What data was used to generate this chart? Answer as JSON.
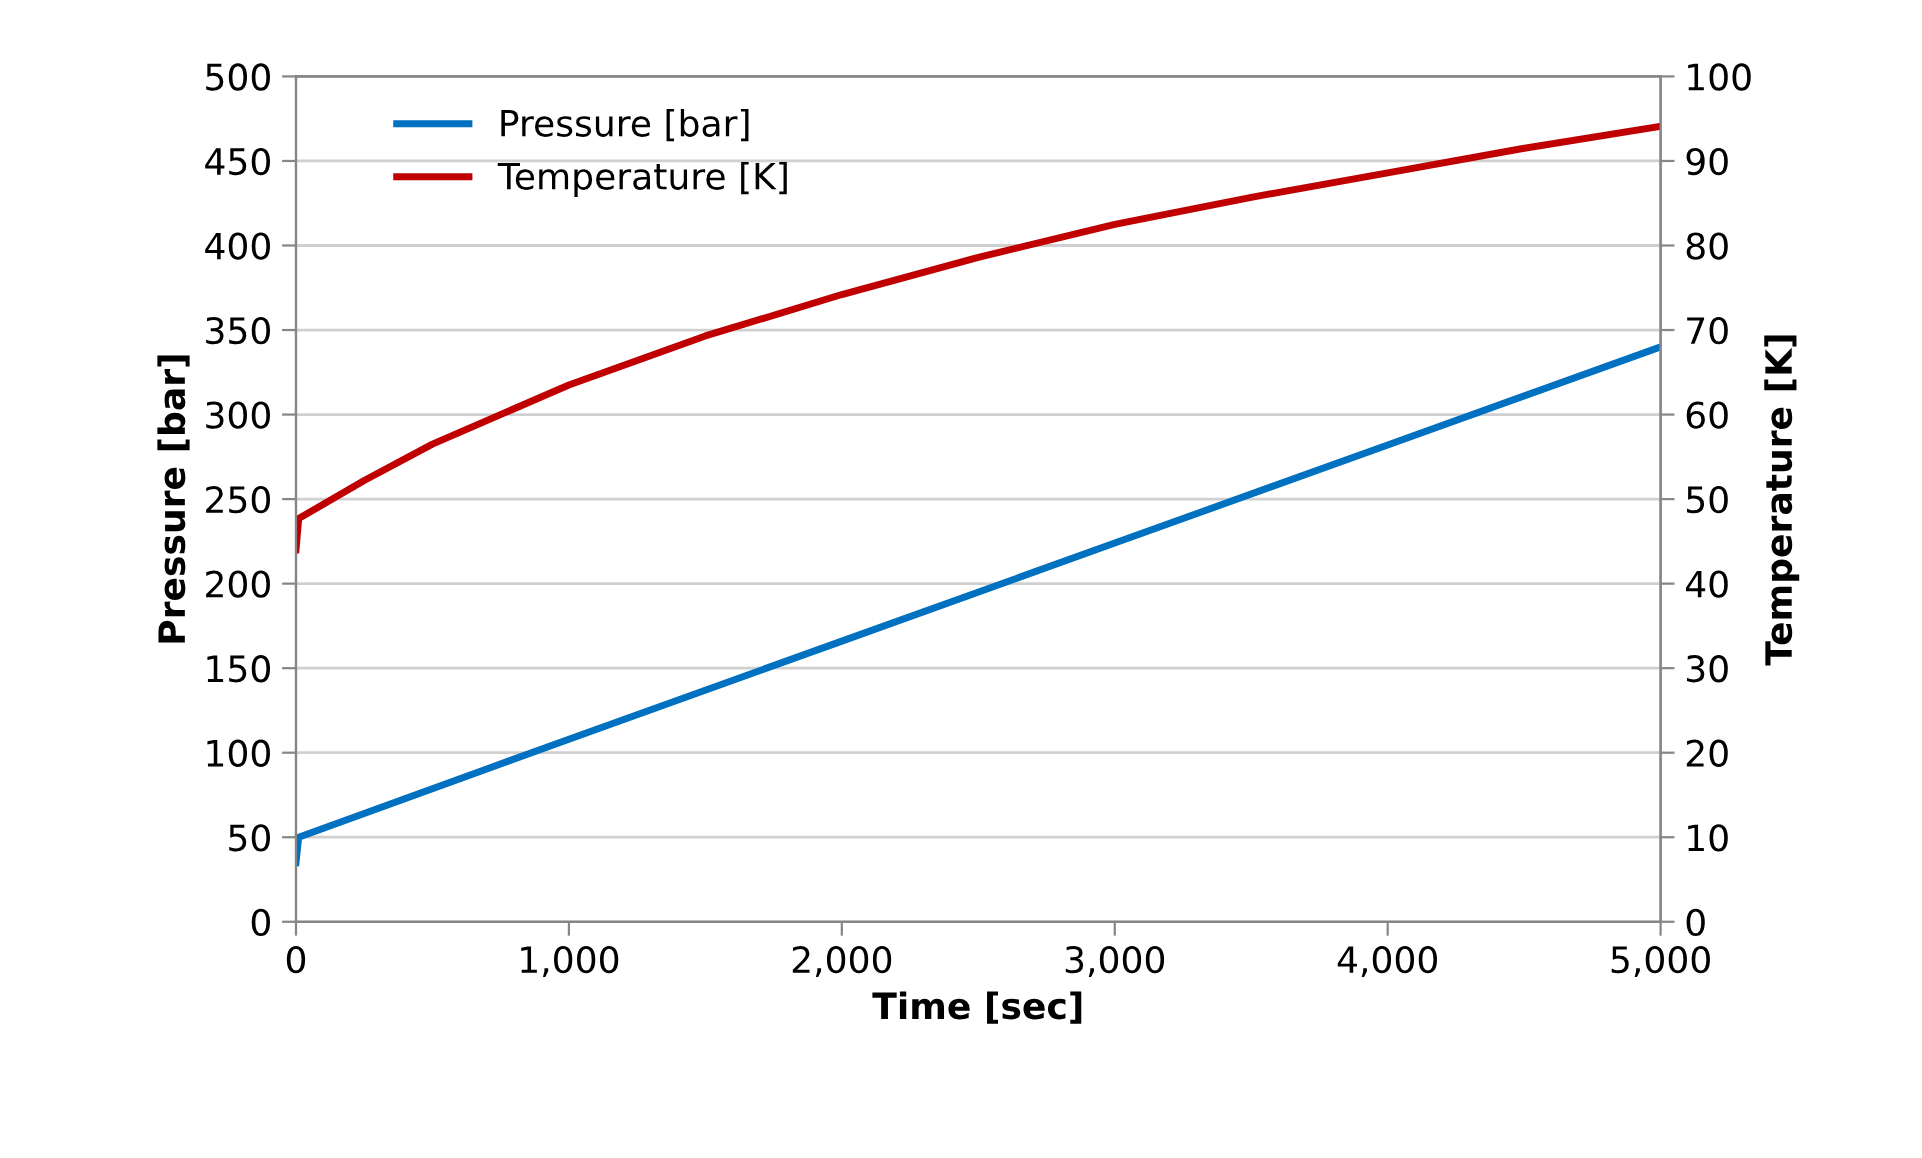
{
  "chart_data": {
    "type": "line",
    "xlabel": "Time [sec]",
    "ylabel": "Pressure [bar]",
    "y2label": "Temperature [K]",
    "xlim": [
      0,
      5000
    ],
    "xticks": [
      {
        "value": 0,
        "label": "0"
      },
      {
        "value": 1000,
        "label": "1,000"
      },
      {
        "value": 2000,
        "label": "2,000"
      },
      {
        "value": 3000,
        "label": "3,000"
      },
      {
        "value": 4000,
        "label": "4,000"
      },
      {
        "value": 5000,
        "label": "5,000"
      }
    ],
    "ylim": [
      0,
      500
    ],
    "yticks": [
      0,
      50,
      100,
      150,
      200,
      250,
      300,
      350,
      400,
      450,
      500
    ],
    "y2lim": [
      0,
      100
    ],
    "y2ticks": [
      0,
      10,
      20,
      30,
      40,
      50,
      60,
      70,
      80,
      90,
      100
    ],
    "grid": "y",
    "legend": "top left",
    "marker": "none",
    "line_style": "solid",
    "series": [
      {
        "name": "Pressure [bar]",
        "color": "#0070c0",
        "x": [
          0,
          10,
          1000,
          2000,
          3000,
          4000,
          5000
        ],
        "values": [
          35,
          50,
          108,
          166,
          224,
          282,
          340
        ]
      },
      {
        "name": "Temperature [K]",
        "color": "#c00000",
        "axis": "y2",
        "x": [
          0,
          10,
          250,
          500,
          1000,
          1500,
          2000,
          2500,
          3000,
          3500,
          4000,
          4500,
          5000
        ],
        "values": [
          44,
          47.7,
          52.2,
          56.5,
          63.5,
          69.3,
          74.2,
          78.6,
          82.5,
          85.7,
          88.6,
          91.5,
          94.1
        ]
      }
    ]
  }
}
